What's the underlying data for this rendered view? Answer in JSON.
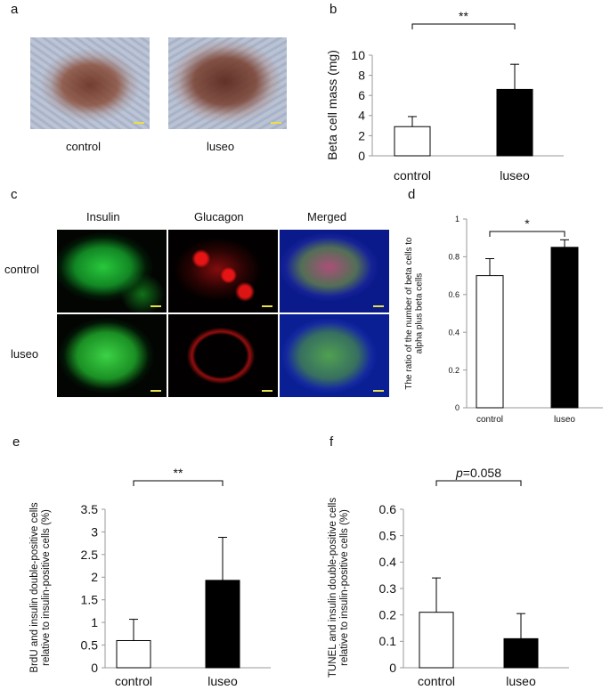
{
  "panels": {
    "a": {
      "letter": "a",
      "images": [
        {
          "label": "control"
        },
        {
          "label": "luseo"
        }
      ]
    },
    "c": {
      "letter": "c",
      "columns": [
        "Insulin",
        "Glucagon",
        "Merged"
      ],
      "rows": [
        "control",
        "luseo"
      ]
    }
  },
  "colors": {
    "control_bar": "#ffffff",
    "luseo_bar": "#000000",
    "axis": "#999999",
    "insulin": "#2fcc3a",
    "glucagon": "#e01414",
    "dapi": "#0b1f95"
  },
  "chart_data": [
    {
      "panel": "b",
      "type": "bar",
      "categories": [
        "control",
        "luseo"
      ],
      "values": [
        2.9,
        6.6
      ],
      "error": [
        1.0,
        2.5
      ],
      "ylabel": "Beta cell mass  (mg)",
      "ylim": [
        0,
        10
      ],
      "yticks": [
        "0",
        "2",
        "4",
        "6",
        "8",
        "10"
      ],
      "significance": "**"
    },
    {
      "panel": "d",
      "type": "bar",
      "categories": [
        "control",
        "luseo"
      ],
      "values": [
        0.7,
        0.85
      ],
      "error": [
        0.09,
        0.04
      ],
      "ylabel": "The ratio of the number of beta cells to alpha plus beta cells",
      "ylim": [
        0,
        1
      ],
      "yticks": [
        "0",
        "0.2",
        "0.4",
        "0.6",
        "0.8",
        "1"
      ],
      "significance": "*"
    },
    {
      "panel": "e",
      "type": "bar",
      "categories": [
        "control",
        "luseo"
      ],
      "values": [
        0.6,
        1.93
      ],
      "error": [
        0.47,
        0.95
      ],
      "ylabel": "BrdU and insulin double-positive  cells relative to insulin-positive cells (%)",
      "ylim": [
        0,
        3.5
      ],
      "yticks": [
        "0",
        "0.5",
        "1",
        "1.5",
        "2",
        "2.5",
        "3",
        "3.5"
      ],
      "significance": "**"
    },
    {
      "panel": "f",
      "type": "bar",
      "categories": [
        "control",
        "luseo"
      ],
      "values": [
        0.21,
        0.11
      ],
      "error": [
        0.13,
        0.095
      ],
      "ylabel": "TUNEL and insulin double-positive cells relative to insulin-positive cells (%)",
      "ylim": [
        0,
        0.6
      ],
      "yticks": [
        "0",
        "0.1",
        "0.2",
        "0.3",
        "0.4",
        "0.5",
        "0.6"
      ],
      "significance_prefix": "p",
      "significance": "=0.058"
    }
  ]
}
